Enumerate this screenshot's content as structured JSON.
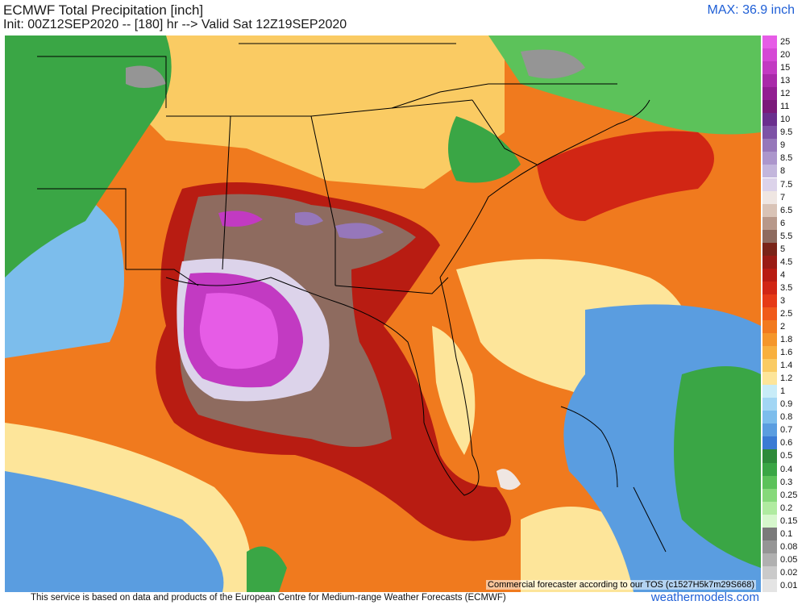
{
  "header": {
    "title": "ECMWF Total Precipitation [inch]",
    "init": "Init: 00Z12SEP2020 -- [180] hr --> Valid Sat 12Z19SEP2020",
    "max": "MAX: 36.9 inch"
  },
  "map": {
    "watermark": "Commercial forecaster according to our TOS (c1527H5k7m29S668)"
  },
  "legend": {
    "items": [
      {
        "label": "25",
        "color": "#e65ce6"
      },
      {
        "label": "20",
        "color": "#d548d5"
      },
      {
        "label": "15",
        "color": "#c23ac2"
      },
      {
        "label": "13",
        "color": "#a92aa9"
      },
      {
        "label": "12",
        "color": "#921e92"
      },
      {
        "label": "11",
        "color": "#7a1a7a"
      },
      {
        "label": "10",
        "color": "#6a2f8e"
      },
      {
        "label": "9.5",
        "color": "#7d52a6"
      },
      {
        "label": "9",
        "color": "#9677ba"
      },
      {
        "label": "8.5",
        "color": "#ac96cc"
      },
      {
        "label": "8",
        "color": "#c3b6dc"
      },
      {
        "label": "7.5",
        "color": "#dcd3ea"
      },
      {
        "label": "7",
        "color": "#efe6e2"
      },
      {
        "label": "6.5",
        "color": "#d9c3b6"
      },
      {
        "label": "6",
        "color": "#b7988a"
      },
      {
        "label": "5.5",
        "color": "#8e6b5f"
      },
      {
        "label": "5",
        "color": "#7a2418"
      },
      {
        "label": "4.5",
        "color": "#9a1c14"
      },
      {
        "label": "4",
        "color": "#b81c12"
      },
      {
        "label": "3.5",
        "color": "#d12614"
      },
      {
        "label": "3",
        "color": "#e63a16"
      },
      {
        "label": "2.5",
        "color": "#f05a1a"
      },
      {
        "label": "2",
        "color": "#f27a1e"
      },
      {
        "label": "1.8",
        "color": "#f5962a"
      },
      {
        "label": "1.6",
        "color": "#f8b03e"
      },
      {
        "label": "1.4",
        "color": "#facb63"
      },
      {
        "label": "1.2",
        "color": "#fde59a"
      },
      {
        "label": "1",
        "color": "#c8ecf8"
      },
      {
        "label": "0.9",
        "color": "#a2d6f4"
      },
      {
        "label": "0.8",
        "color": "#7cbdec"
      },
      {
        "label": "0.7",
        "color": "#5a9de0"
      },
      {
        "label": "0.6",
        "color": "#3a7bd4"
      },
      {
        "label": "0.5",
        "color": "#2e8b3a"
      },
      {
        "label": "0.4",
        "color": "#3aa645"
      },
      {
        "label": "0.3",
        "color": "#5cc25a"
      },
      {
        "label": "0.25",
        "color": "#86d97a"
      },
      {
        "label": "0.2",
        "color": "#b0eba0"
      },
      {
        "label": "0.15",
        "color": "#d6f7cc"
      },
      {
        "label": "0.1",
        "color": "#7a7a7a"
      },
      {
        "label": "0.08",
        "color": "#959595"
      },
      {
        "label": "0.05",
        "color": "#b0b0b0"
      },
      {
        "label": "0.02",
        "color": "#cacaca"
      },
      {
        "label": "0.01",
        "color": "#e4e4e4"
      }
    ]
  },
  "footer": {
    "disclaimer": "This service is based on data and products of the European Centre for Medium-range Weather Forecasts (ECMWF)",
    "brand": "weathermodels.com"
  }
}
